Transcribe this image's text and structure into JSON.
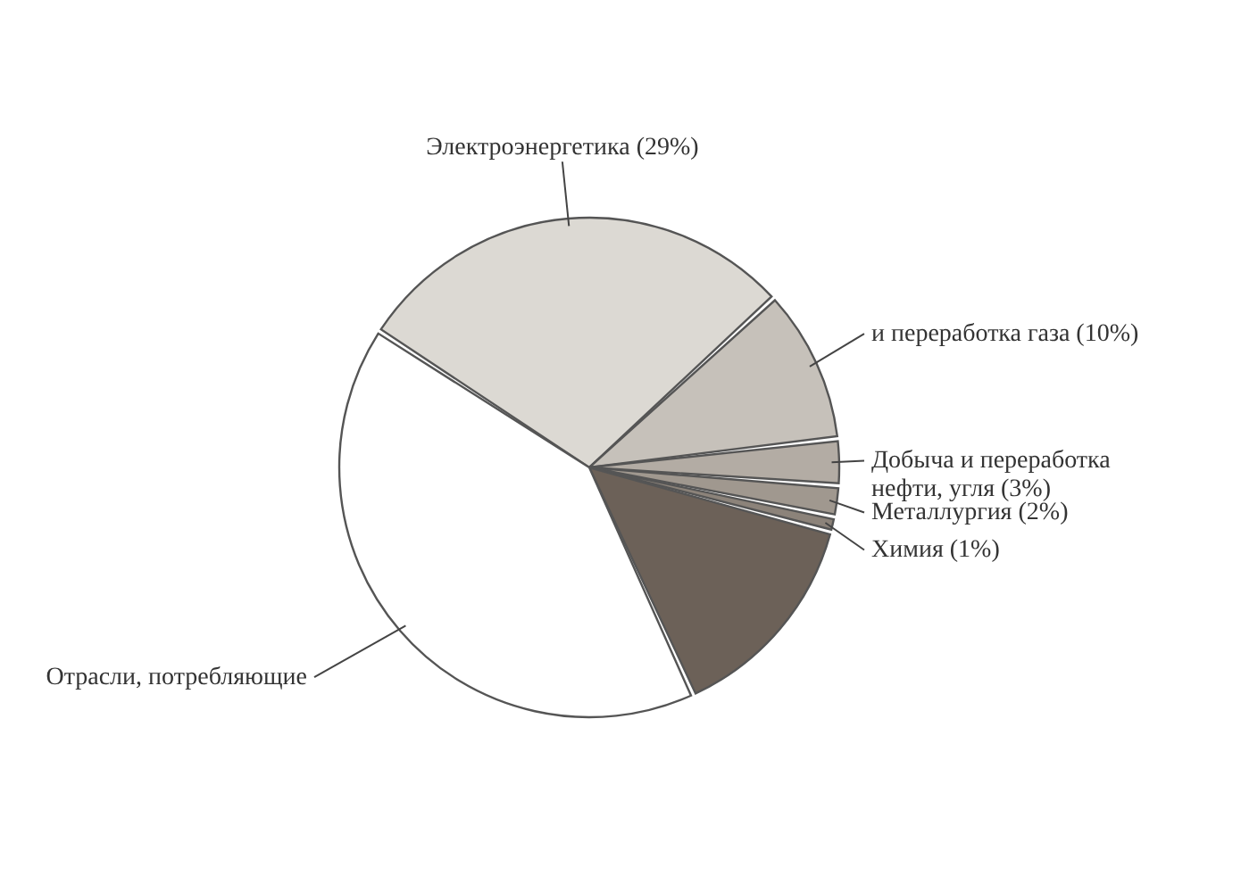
{
  "chart_data": {
    "type": "pie",
    "categories": [
      "Электроэнергетика (29%)",
      "и переработка газа (10%)",
      "Добыча и переработка нефти, угля (3%)",
      "Металлургия (2%)",
      "Химия (1%)",
      null,
      "Отрасли, потребляющие"
    ],
    "values": [
      29,
      10,
      3,
      2,
      1,
      14,
      41
    ],
    "colors": [
      "#dcd9d3",
      "#c6c1ba",
      "#b3aca4",
      "#a0988f",
      "#8c837a",
      "#6c6158",
      "#ffffff"
    ]
  }
}
